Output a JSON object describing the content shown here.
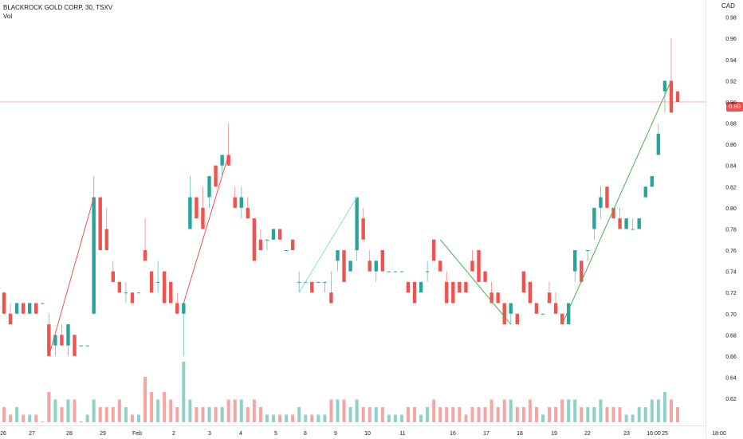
{
  "legend": {
    "symbol": "BLACKROCK GOLD CORP, 30, TSXV",
    "volume_label": "Vol"
  },
  "price_axis": {
    "currency": "CAD",
    "current_price": "0.90"
  },
  "colors": {
    "up": "#26a69a",
    "down": "#ef5350",
    "up_volume": "#8fd0c8",
    "down_volume": "#f5a6a4",
    "trend_up": "#4caf50",
    "trend_down": "#ef5350",
    "trend_light": "#80deea"
  },
  "chart_data": {
    "type": "candlestick",
    "title": "BLACKROCK GOLD CORP, 30, TSXV",
    "y_ticks": [
      "0.98",
      "0.96",
      "0.94",
      "0.92",
      "0.90",
      "0.88",
      "0.86",
      "0.84",
      "0.82",
      "0.80",
      "0.78",
      "0.76",
      "0.74",
      "0.72",
      "0.70",
      "0.68",
      "0.66",
      "0.64",
      "0.62"
    ],
    "ylim": [
      0.605,
      0.985
    ],
    "x_ticks": [
      "26",
      "27",
      "28",
      "29",
      "Feb",
      "2",
      "3",
      "4",
      "5",
      "8",
      "9",
      "10",
      "11",
      "16",
      "17",
      "18",
      "19",
      "22",
      "23",
      "16:00",
      "25",
      "18:00"
    ],
    "current_price": 0.9,
    "candles": [
      [
        0.72,
        0.72,
        0.7,
        0.7,
        2
      ],
      [
        0.7,
        0.71,
        0.69,
        0.69,
        1
      ],
      [
        0.7,
        0.71,
        0.7,
        0.71,
        2
      ],
      [
        0.71,
        0.71,
        0.7,
        0.7,
        1
      ],
      [
        0.7,
        0.71,
        0.7,
        0.71,
        1
      ],
      [
        0.71,
        0.71,
        0.7,
        0.7,
        1
      ],
      [
        0.71,
        0.71,
        0.71,
        0.71,
        0
      ],
      [
        0.69,
        0.7,
        0.66,
        0.66,
        4
      ],
      [
        0.67,
        0.68,
        0.66,
        0.68,
        3
      ],
      [
        0.68,
        0.69,
        0.67,
        0.67,
        2
      ],
      [
        0.67,
        0.69,
        0.66,
        0.69,
        3
      ],
      [
        0.68,
        0.68,
        0.66,
        0.66,
        3
      ],
      [
        0.67,
        0.67,
        0.67,
        0.67,
        0
      ],
      [
        0.67,
        0.67,
        0.67,
        0.67,
        1
      ],
      [
        0.7,
        0.83,
        0.7,
        0.81,
        3
      ],
      [
        0.81,
        0.81,
        0.76,
        0.76,
        2
      ],
      [
        0.78,
        0.8,
        0.76,
        0.76,
        2
      ],
      [
        0.74,
        0.75,
        0.73,
        0.73,
        2
      ],
      [
        0.73,
        0.73,
        0.72,
        0.72,
        3
      ],
      [
        0.72,
        0.73,
        0.71,
        0.72,
        2
      ],
      [
        0.72,
        0.72,
        0.71,
        0.71,
        1
      ],
      [
        0.72,
        0.72,
        0.72,
        0.72,
        1
      ],
      [
        0.76,
        0.79,
        0.75,
        0.75,
        6
      ],
      [
        0.74,
        0.74,
        0.72,
        0.72,
        4
      ],
      [
        0.73,
        0.75,
        0.72,
        0.73,
        3
      ],
      [
        0.74,
        0.74,
        0.71,
        0.71,
        4
      ],
      [
        0.73,
        0.73,
        0.71,
        0.71,
        3
      ],
      [
        0.71,
        0.72,
        0.7,
        0.7,
        2
      ],
      [
        0.7,
        0.71,
        0.66,
        0.71,
        8
      ],
      [
        0.78,
        0.83,
        0.78,
        0.81,
        3
      ],
      [
        0.81,
        0.81,
        0.79,
        0.79,
        2
      ],
      [
        0.8,
        0.82,
        0.78,
        0.78,
        2
      ],
      [
        0.81,
        0.83,
        0.8,
        0.83,
        2
      ],
      [
        0.84,
        0.84,
        0.82,
        0.82,
        2
      ],
      [
        0.84,
        0.85,
        0.83,
        0.85,
        2
      ],
      [
        0.85,
        0.88,
        0.84,
        0.84,
        3
      ],
      [
        0.81,
        0.82,
        0.8,
        0.8,
        3
      ],
      [
        0.8,
        0.82,
        0.79,
        0.81,
        3
      ],
      [
        0.8,
        0.81,
        0.79,
        0.79,
        2
      ],
      [
        0.79,
        0.79,
        0.75,
        0.75,
        3
      ],
      [
        0.77,
        0.78,
        0.76,
        0.76,
        2
      ],
      [
        0.77,
        0.77,
        0.76,
        0.77,
        1
      ],
      [
        0.77,
        0.78,
        0.77,
        0.78,
        1
      ],
      [
        0.78,
        0.78,
        0.77,
        0.77,
        1
      ],
      [
        0.76,
        0.76,
        0.76,
        0.76,
        1
      ],
      [
        0.77,
        0.77,
        0.76,
        0.76,
        1
      ],
      [
        0.73,
        0.74,
        0.72,
        0.73,
        2
      ],
      [
        0.73,
        0.73,
        0.73,
        0.73,
        1
      ],
      [
        0.73,
        0.73,
        0.72,
        0.72,
        1
      ],
      [
        0.73,
        0.73,
        0.73,
        0.73,
        1
      ],
      [
        0.73,
        0.73,
        0.72,
        0.73,
        1
      ],
      [
        0.72,
        0.74,
        0.71,
        0.71,
        3
      ],
      [
        0.75,
        0.76,
        0.74,
        0.76,
        3
      ],
      [
        0.76,
        0.76,
        0.73,
        0.73,
        3
      ],
      [
        0.74,
        0.75,
        0.74,
        0.75,
        2
      ],
      [
        0.76,
        0.81,
        0.75,
        0.81,
        3
      ],
      [
        0.79,
        0.8,
        0.77,
        0.77,
        2
      ],
      [
        0.75,
        0.76,
        0.74,
        0.74,
        2
      ],
      [
        0.74,
        0.75,
        0.73,
        0.75,
        2
      ],
      [
        0.76,
        0.76,
        0.74,
        0.74,
        2
      ],
      [
        0.74,
        0.74,
        0.74,
        0.74,
        1
      ],
      [
        0.74,
        0.74,
        0.74,
        0.74,
        1
      ],
      [
        0.74,
        0.74,
        0.74,
        0.74,
        1
      ],
      [
        0.73,
        0.73,
        0.72,
        0.72,
        2
      ],
      [
        0.73,
        0.73,
        0.71,
        0.71,
        2
      ],
      [
        0.72,
        0.73,
        0.72,
        0.73,
        1
      ],
      [
        0.74,
        0.75,
        0.73,
        0.74,
        2
      ],
      [
        0.77,
        0.77,
        0.75,
        0.75,
        3
      ],
      [
        0.75,
        0.75,
        0.74,
        0.74,
        2
      ],
      [
        0.73,
        0.74,
        0.71,
        0.71,
        2
      ],
      [
        0.73,
        0.73,
        0.71,
        0.71,
        2
      ],
      [
        0.73,
        0.73,
        0.72,
        0.72,
        2
      ],
      [
        0.73,
        0.73,
        0.72,
        0.72,
        1
      ],
      [
        0.75,
        0.76,
        0.74,
        0.74,
        2
      ],
      [
        0.76,
        0.76,
        0.73,
        0.73,
        2
      ],
      [
        0.74,
        0.74,
        0.73,
        0.73,
        2
      ],
      [
        0.72,
        0.73,
        0.71,
        0.71,
        3
      ],
      [
        0.72,
        0.72,
        0.71,
        0.71,
        2
      ],
      [
        0.71,
        0.71,
        0.69,
        0.69,
        3
      ],
      [
        0.7,
        0.71,
        0.69,
        0.71,
        3
      ],
      [
        0.7,
        0.7,
        0.69,
        0.69,
        2
      ],
      [
        0.74,
        0.74,
        0.72,
        0.72,
        2
      ],
      [
        0.73,
        0.73,
        0.71,
        0.71,
        3
      ],
      [
        0.71,
        0.71,
        0.7,
        0.7,
        2
      ],
      [
        0.7,
        0.7,
        0.7,
        0.7,
        1
      ],
      [
        0.72,
        0.73,
        0.71,
        0.71,
        2
      ],
      [
        0.71,
        0.72,
        0.7,
        0.7,
        2
      ],
      [
        0.7,
        0.7,
        0.69,
        0.69,
        3
      ],
      [
        0.69,
        0.71,
        0.69,
        0.71,
        3
      ],
      [
        0.74,
        0.76,
        0.73,
        0.76,
        3
      ],
      [
        0.75,
        0.75,
        0.73,
        0.73,
        2
      ],
      [
        0.76,
        0.76,
        0.75,
        0.76,
        2
      ],
      [
        0.78,
        0.8,
        0.77,
        0.8,
        2
      ],
      [
        0.8,
        0.82,
        0.79,
        0.81,
        3
      ],
      [
        0.82,
        0.82,
        0.8,
        0.8,
        2
      ],
      [
        0.8,
        0.8,
        0.79,
        0.79,
        2
      ],
      [
        0.79,
        0.8,
        0.78,
        0.78,
        2
      ],
      [
        0.78,
        0.79,
        0.78,
        0.79,
        1
      ],
      [
        0.78,
        0.79,
        0.78,
        0.78,
        1
      ],
      [
        0.78,
        0.79,
        0.78,
        0.79,
        2
      ],
      [
        0.81,
        0.82,
        0.81,
        0.82,
        2
      ],
      [
        0.82,
        0.83,
        0.82,
        0.83,
        3
      ],
      [
        0.85,
        0.88,
        0.85,
        0.87,
        3
      ],
      [
        0.91,
        0.92,
        0.89,
        0.92,
        4
      ],
      [
        0.92,
        0.96,
        0.89,
        0.89,
        3
      ],
      [
        0.91,
        0.91,
        0.9,
        0.9,
        2
      ]
    ],
    "trend_lines": [
      {
        "from": [
          7,
          0.66
        ],
        "to": [
          14,
          0.81
        ],
        "color": "down"
      },
      {
        "from": [
          28,
          0.71
        ],
        "to": [
          35,
          0.85
        ],
        "color": "down"
      },
      {
        "from": [
          46,
          0.72
        ],
        "to": [
          55,
          0.81
        ],
        "color": "light"
      },
      {
        "from": [
          68,
          0.77
        ],
        "to": [
          79,
          0.69
        ],
        "color": "up"
      },
      {
        "from": [
          87,
          0.69
        ],
        "to": [
          104,
          0.92
        ],
        "color": "up"
      }
    ]
  }
}
